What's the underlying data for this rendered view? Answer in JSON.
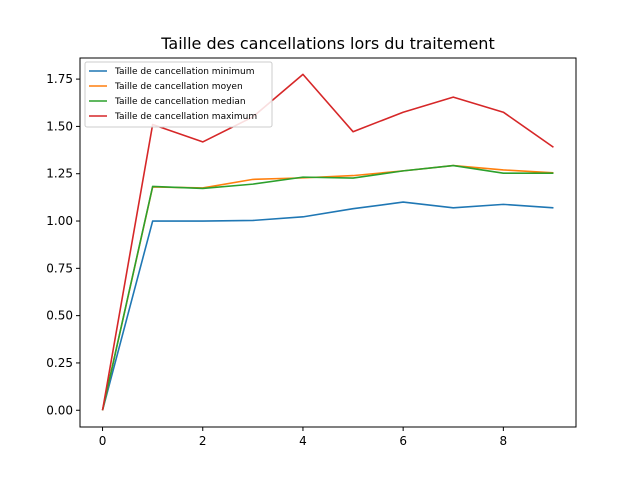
{
  "chart_data": {
    "type": "line",
    "title": "Taille des cancellations lors du traitement",
    "xlabel": "",
    "ylabel": "",
    "xlim": [
      -0.45,
      9.45
    ],
    "ylim": [
      -0.0885,
      1.8615
    ],
    "x_ticks": [
      0,
      2,
      4,
      6,
      8
    ],
    "y_ticks": [
      0.0,
      0.25,
      0.5,
      0.75,
      1.0,
      1.25,
      1.5,
      1.75
    ],
    "x_tick_labels": [
      "0",
      "2",
      "4",
      "6",
      "8"
    ],
    "y_tick_labels": [
      "0.00",
      "0.25",
      "0.50",
      "0.75",
      "1.00",
      "1.25",
      "1.50",
      "1.75"
    ],
    "grid": false,
    "legend_position": "top-left",
    "x": [
      0,
      1,
      2,
      3,
      4,
      5,
      6,
      7,
      8,
      9
    ],
    "series": [
      {
        "name": "Taille de cancellation minimum",
        "color": "#1f77b4",
        "values": [
          0.0,
          1.0,
          1.0,
          1.003,
          1.022,
          1.065,
          1.1,
          1.07,
          1.088,
          1.07
        ]
      },
      {
        "name": "Taille de cancellation moyen",
        "color": "#ff7f0e",
        "values": [
          0.0,
          1.18,
          1.175,
          1.22,
          1.228,
          1.24,
          1.265,
          1.293,
          1.27,
          1.255
        ]
      },
      {
        "name": "Taille de cancellation median",
        "color": "#2ca02c",
        "values": [
          0.0,
          1.183,
          1.172,
          1.195,
          1.232,
          1.227,
          1.265,
          1.293,
          1.253,
          1.253
        ]
      },
      {
        "name": "Taille de cancellation maximum",
        "color": "#d62728",
        "values": [
          0.0,
          1.51,
          1.418,
          1.55,
          1.775,
          1.472,
          1.575,
          1.655,
          1.575,
          1.39
        ]
      }
    ]
  }
}
